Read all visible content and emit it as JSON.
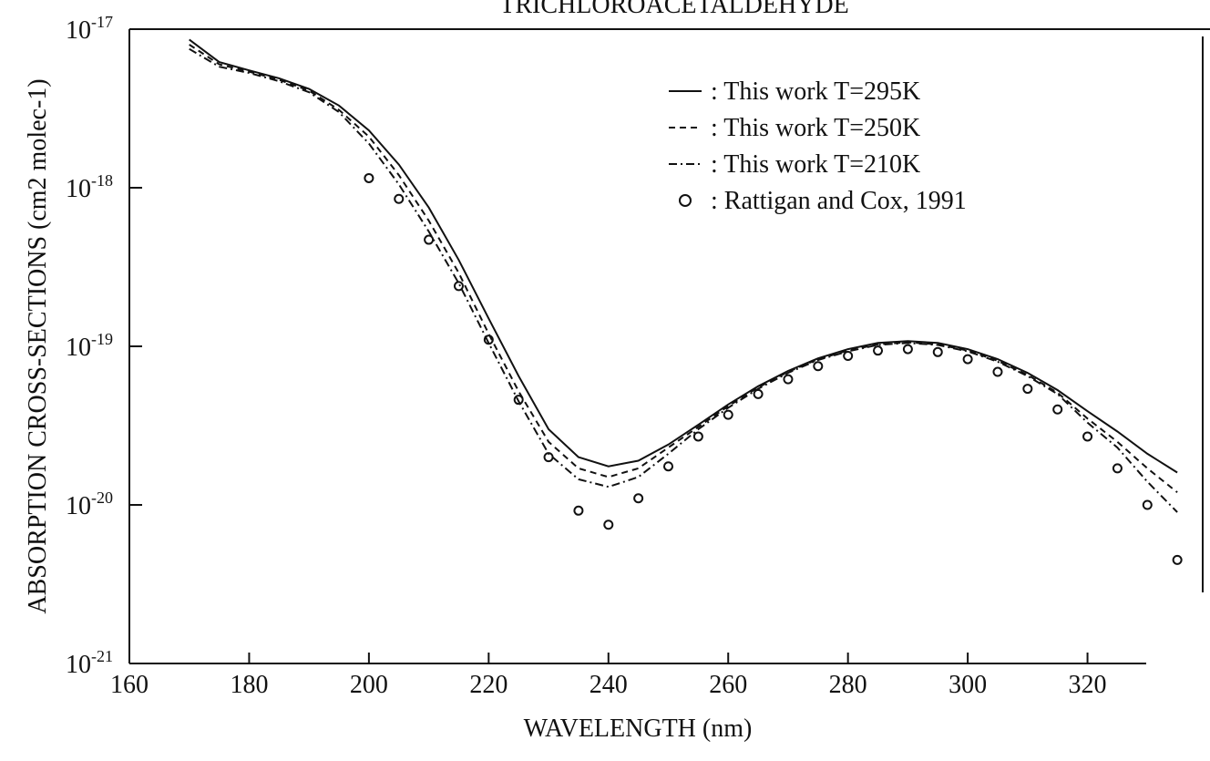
{
  "chart_data": {
    "type": "line",
    "title": "TRICHLOROACETALDEHYDE",
    "x_label": "WAVELENGTH (nm)",
    "y_label": "ABSORPTION CROSS-SECTIONS (cm2 molec-1)",
    "log_y": true,
    "grid": false,
    "legend": "upper right",
    "x": [
      170,
      175,
      180,
      185,
      190,
      195,
      200,
      205,
      210,
      215,
      220,
      225,
      230,
      235,
      240,
      245,
      250,
      255,
      260,
      265,
      270,
      275,
      280,
      285,
      290,
      295,
      300,
      305,
      310,
      315,
      320,
      325,
      330,
      335
    ],
    "series": [
      {
        "name": ": This work T=295K",
        "style": "solid",
        "color": "#111111",
        "values": [
          8.6e-18,
          6.2e-18,
          5.5e-18,
          4.9e-18,
          4.2e-18,
          3.3e-18,
          2.3e-18,
          1.4e-18,
          7.5e-19,
          3.5e-19,
          1.5e-19,
          6.5e-20,
          3e-20,
          2e-20,
          1.75e-20,
          1.9e-20,
          2.4e-20,
          3.2e-20,
          4.3e-20,
          5.6e-20,
          7e-20,
          8.4e-20,
          9.6e-20,
          1.05e-19,
          1.08e-19,
          1.05e-19,
          9.6e-20,
          8.3e-20,
          6.8e-20,
          5.3e-20,
          3.9e-20,
          2.9e-20,
          2.1e-20,
          1.6e-20
        ]
      },
      {
        "name": ": This work T=250K",
        "style": "dashed",
        "color": "#111111",
        "values": [
          8e-18,
          6e-18,
          5.4e-18,
          4.8e-18,
          4.1e-18,
          3.1e-18,
          2.1e-18,
          1.2e-18,
          6.2e-19,
          2.9e-19,
          1.2e-19,
          5.2e-20,
          2.5e-20,
          1.7e-20,
          1.5e-20,
          1.7e-20,
          2.3e-20,
          3.1e-20,
          4.2e-20,
          5.5e-20,
          6.9e-20,
          8.3e-20,
          9.4e-20,
          1.03e-19,
          1.06e-19,
          1.03e-19,
          9.4e-20,
          8.1e-20,
          6.6e-20,
          5.1e-20,
          3.5e-20,
          2.5e-20,
          1.7e-20,
          1.2e-20
        ]
      },
      {
        "name": ": This work T=210K",
        "style": "dashdot",
        "color": "#111111",
        "values": [
          7.5e-18,
          5.8e-18,
          5.3e-18,
          4.7e-18,
          4e-18,
          3e-18,
          1.9e-18,
          1.05e-18,
          5.3e-19,
          2.5e-19,
          1.05e-19,
          4.5e-20,
          2.1e-20,
          1.45e-20,
          1.3e-20,
          1.5e-20,
          2.1e-20,
          3e-20,
          4.1e-20,
          5.4e-20,
          6.8e-20,
          8.2e-20,
          9.3e-20,
          1.02e-19,
          1.05e-19,
          1.02e-19,
          9.3e-20,
          8e-20,
          6.5e-20,
          5e-20,
          3.3e-20,
          2.3e-20,
          1.4e-20,
          9e-21
        ]
      },
      {
        "name": ": Rattigan and Cox, 1991",
        "style": "marker",
        "color": "#111111",
        "values": [
          null,
          null,
          null,
          null,
          null,
          null,
          1.15e-18,
          8.5e-19,
          4.7e-19,
          2.4e-19,
          1.1e-19,
          4.6e-20,
          2e-20,
          9.2e-21,
          7.5e-21,
          1.1e-20,
          1.75e-20,
          2.7e-20,
          3.7e-20,
          5e-20,
          6.2e-20,
          7.5e-20,
          8.7e-20,
          9.4e-20,
          9.6e-20,
          9.2e-20,
          8.3e-20,
          6.9e-20,
          5.4e-20,
          4e-20,
          2.7e-20,
          1.7e-20,
          1e-20,
          4.5e-21
        ]
      }
    ],
    "xlim": [
      160,
      340
    ],
    "xticks": [
      160,
      180,
      200,
      220,
      240,
      260,
      280,
      300,
      320
    ],
    "ylim": [
      1e-21,
      1e-17
    ],
    "yticks": [
      {
        "value": 1e-21,
        "label": "10-21"
      },
      {
        "value": 1e-20,
        "label": "10-20"
      },
      {
        "value": 1e-19,
        "label": "10-19"
      },
      {
        "value": 1e-18,
        "label": "10-18"
      },
      {
        "value": 1e-17,
        "label": "10-17"
      }
    ]
  }
}
